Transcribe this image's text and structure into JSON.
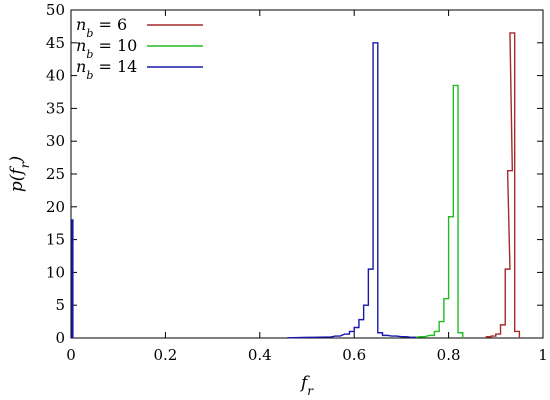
{
  "chart_data": {
    "type": "line",
    "xlabel": "f_r",
    "ylabel": "p(f_r)",
    "xlim": [
      0,
      1
    ],
    "ylim": [
      0,
      50
    ],
    "x_ticks": [
      "0",
      "0.2",
      "0.4",
      "0.6",
      "0.8",
      "1"
    ],
    "y_ticks": [
      "0",
      "5",
      "10",
      "15",
      "20",
      "25",
      "30",
      "35",
      "40",
      "45",
      "50"
    ],
    "legend_position": "top-left",
    "series": [
      {
        "name": "n_b = 6",
        "color": "#a52a2a",
        "bins": [
          [
            0.88,
            0.2
          ],
          [
            0.89,
            0.3
          ],
          [
            0.9,
            0.6
          ],
          [
            0.91,
            2.0
          ],
          [
            0.92,
            10.5
          ],
          [
            0.925,
            25.5
          ],
          [
            0.93,
            46.5
          ],
          [
            0.94,
            1.0
          ]
        ]
      },
      {
        "name": "n_b = 10",
        "color": "#22bb22",
        "bins": [
          [
            0.72,
            0.1
          ],
          [
            0.74,
            0.2
          ],
          [
            0.76,
            0.4
          ],
          [
            0.77,
            1.0
          ],
          [
            0.78,
            2.5
          ],
          [
            0.79,
            6.0
          ],
          [
            0.8,
            18.5
          ],
          [
            0.81,
            38.5
          ],
          [
            0.82,
            0.8
          ]
        ]
      },
      {
        "name": "n_b = 14",
        "color": "#1a1aaa",
        "spike": [
          0.0,
          18
        ],
        "bins": [
          [
            0.46,
            0.05
          ],
          [
            0.5,
            0.1
          ],
          [
            0.54,
            0.15
          ],
          [
            0.56,
            0.3
          ],
          [
            0.58,
            0.6
          ],
          [
            0.59,
            1.0
          ],
          [
            0.6,
            1.6
          ],
          [
            0.61,
            2.8
          ],
          [
            0.62,
            5.0
          ],
          [
            0.63,
            10.5
          ],
          [
            0.64,
            45.0
          ],
          [
            0.65,
            0.8
          ],
          [
            0.66,
            0.4
          ],
          [
            0.68,
            0.3
          ],
          [
            0.7,
            0.2
          ],
          [
            0.72,
            0.1
          ]
        ]
      }
    ]
  }
}
